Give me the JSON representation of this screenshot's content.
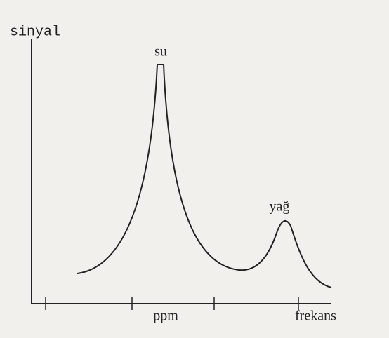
{
  "axes": {
    "y_label": "sinyal",
    "x_label": "frekans",
    "x_unit": "ppm"
  },
  "peaks": [
    {
      "label": "su"
    },
    {
      "label": "yağ"
    }
  ]
}
